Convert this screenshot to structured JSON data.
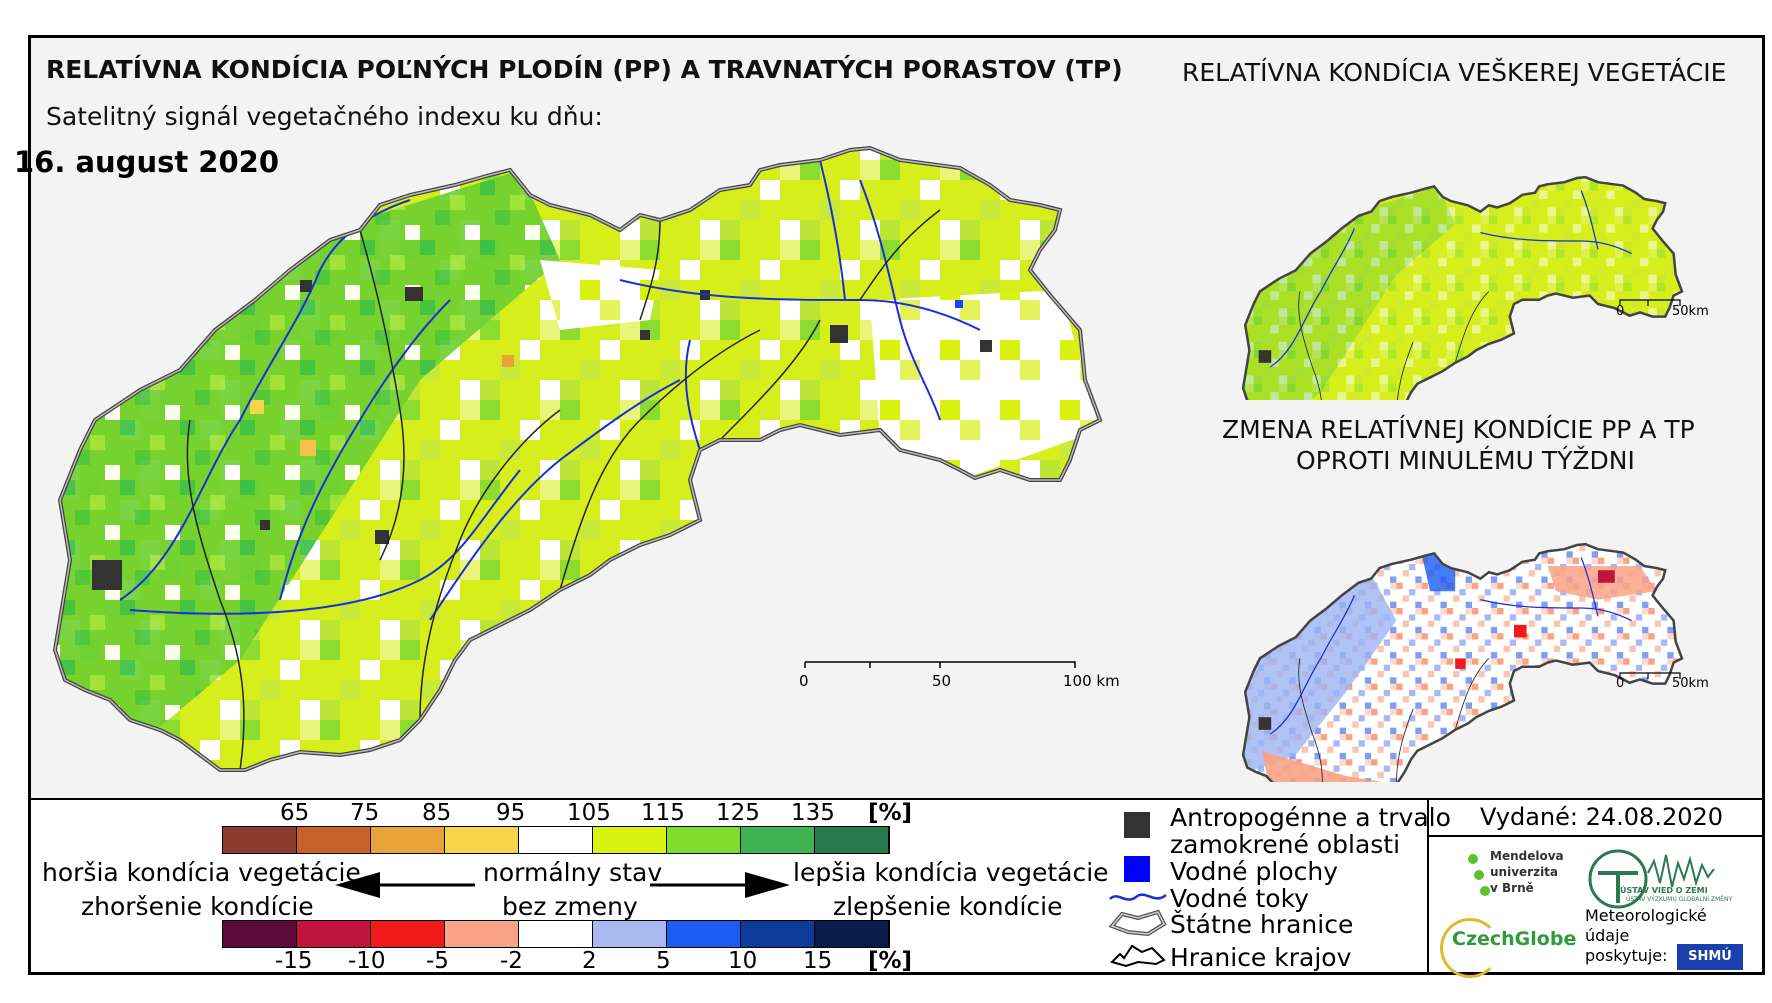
{
  "header": {
    "title_main": "RELATÍVNA KONDÍCIA POĽNÝCH PLODÍN (PP) A TRAVNATÝCH PORASTOV (TP)",
    "subtitle": "Satelitný signál vegetačného indexu ku dňu:",
    "date": "16. august 2020",
    "title_top_right": "RELATÍVNA KONDÍCIA VEŠKEREJ VEGETÁCIE",
    "title_mid_right_1": "ZMENA RELATÍVNEJ KONDÍCIE PP A TP",
    "title_mid_right_2": "OPROTI MINULÉMU TÝŽDNI"
  },
  "main_map": {
    "scalebar": {
      "labels": [
        "0",
        "50",
        "100 km"
      ]
    }
  },
  "small_map_1": {
    "scalebar": {
      "labels": [
        "0",
        "50km"
      ]
    }
  },
  "small_map_2": {
    "scalebar": {
      "labels": [
        "0",
        "50km"
      ]
    }
  },
  "legend": {
    "condition_scale": {
      "unit": "[%]",
      "ticks": [
        "65",
        "75",
        "85",
        "95",
        "105",
        "115",
        "125",
        "135"
      ],
      "colors": [
        "#8b3a2b",
        "#c8612a",
        "#e8a33a",
        "#f6d54b",
        "#ffffff",
        "#d9f20f",
        "#7fdc2a",
        "#3fb34f",
        "#2a7a4f"
      ]
    },
    "change_scale": {
      "unit": "[%]",
      "ticks": [
        "-15",
        "-10",
        "-5",
        "-2",
        "2",
        "5",
        "10",
        "15"
      ],
      "colors": [
        "#5b0a3a",
        "#c0143c",
        "#f01a1a",
        "#f9a386",
        "#ffffff",
        "#a9b9ef",
        "#1a5cf5",
        "#0c3b9a",
        "#0a1a4a"
      ]
    },
    "left_top": "horšia kondícia vegetácie",
    "left_bottom": "zhoršenie kondície",
    "center_top": "normálny stav",
    "center_bottom": "bez zmeny",
    "right_top": "lepšia kondícia vegetácie",
    "right_bottom": "zlepšenie kondície",
    "items": [
      {
        "label": "Antropogénne a trvalo",
        "icon": "anthropogenic-area-swatch"
      },
      {
        "label": "zamokrené oblasti",
        "icon": ""
      },
      {
        "label": "Vodné plochy",
        "icon": "water-area-swatch"
      },
      {
        "label": "Vodné toky",
        "icon": "river-line-icon"
      },
      {
        "label": "Štátne hranice",
        "icon": "state-border-icon"
      },
      {
        "label": "Hranice krajov",
        "icon": "region-border-icon"
      }
    ],
    "colors": {
      "anthropogenic": "#333333",
      "water": "#0000ff",
      "river": "#1a2fd8"
    }
  },
  "issued": {
    "label": "Vydané: 24.08.2020"
  },
  "logos": {
    "mendel_lines": [
      "Mendelova",
      "univerzita",
      "v Brně"
    ],
    "ustav": "ÚSTAV VÝZKUMU GLOBÁLNÍ ZMĚNY",
    "ustav_top": "ÚSTAV VIED O ZEMI",
    "czechglobe": "CzechGlobe",
    "meteo_lines": [
      "Meteorologické",
      "údaje",
      "poskytuje:"
    ],
    "shmu": "SHMÚ"
  }
}
